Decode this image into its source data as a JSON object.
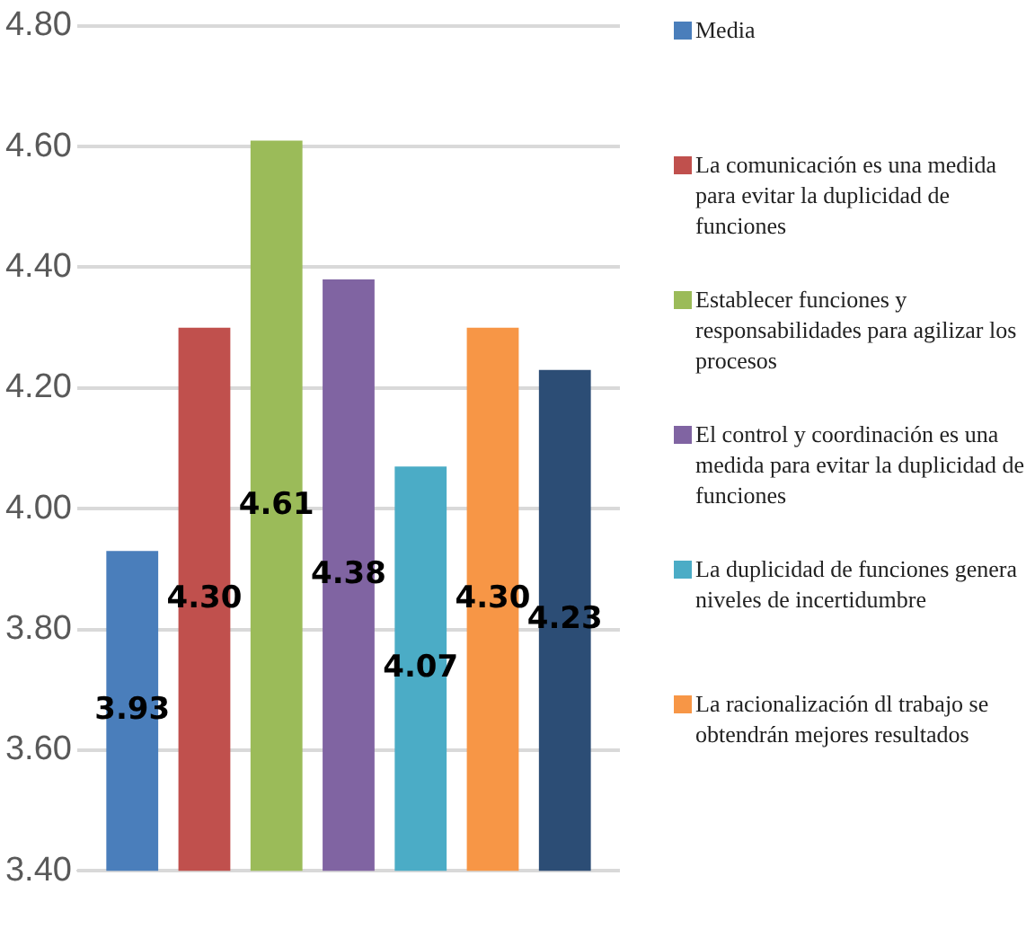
{
  "chart_data": {
    "type": "bar",
    "categories": [
      null
    ],
    "series": [
      {
        "name": "Media",
        "color": "#4a7ebb",
        "values": [
          3.93
        ]
      },
      {
        "name": "La comunicación es una medida para evitar la duplicidad de funciones",
        "color": "#c0504d",
        "values": [
          4.3
        ]
      },
      {
        "name": "Establecer funciones y responsabilidades para agilizar los procesos",
        "color": "#9bbb59",
        "values": [
          4.61
        ]
      },
      {
        "name": "El control y coordinación es una medida para evitar la duplicidad de funciones",
        "color": "#8064a2",
        "values": [
          4.38
        ]
      },
      {
        "name": "La duplicidad de funciones genera niveles de incertidumbre",
        "color": "#4bacc6",
        "values": [
          4.07
        ]
      },
      {
        "name": "La racionalización dl trabajo se obtendrán mejores resultados",
        "color": "#f79646",
        "values": [
          4.3
        ]
      },
      {
        "color": "#2c4d75",
        "values": [
          4.23
        ]
      }
    ],
    "value_labels": [
      "3.93",
      "4.30",
      "4.61",
      "4.38",
      "4.07",
      "4.30",
      "4.23"
    ],
    "ylim": [
      3.4,
      4.8
    ],
    "yticks": [
      {
        "value": 3.4,
        "label": "3.40"
      },
      {
        "value": 3.6,
        "label": "3.60"
      },
      {
        "value": 3.8,
        "label": "3.80"
      },
      {
        "value": 4.0,
        "label": "4.00"
      },
      {
        "value": 4.2,
        "label": "4.20"
      },
      {
        "value": 4.4,
        "label": "4.40"
      },
      {
        "value": 4.6,
        "label": "4.60"
      },
      {
        "value": 4.8,
        "label": "4.80"
      }
    ],
    "grid": "y",
    "legend": "right"
  }
}
